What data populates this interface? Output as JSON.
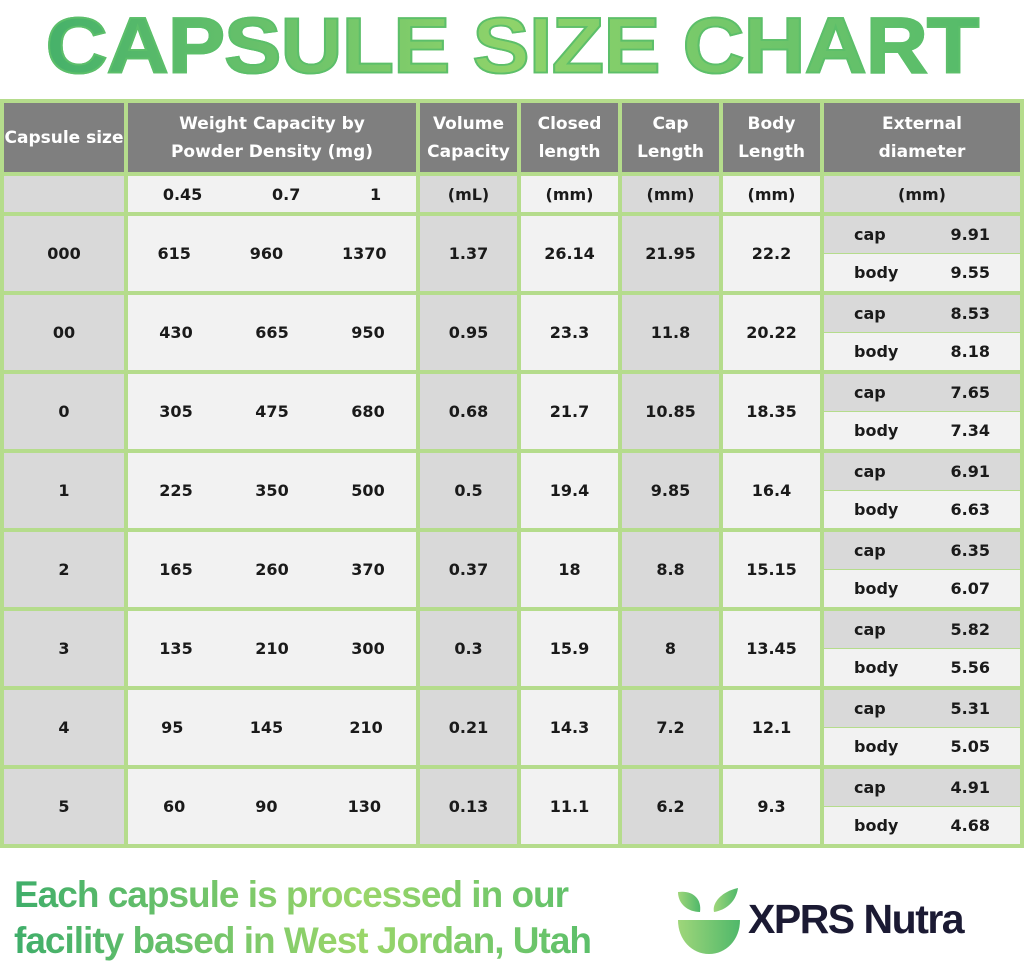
{
  "title": "CAPSULE SIZE CHART",
  "colors": {
    "border": "#b5dc8c",
    "header_bg": "#7f7f7f",
    "dark_cell": "#d9d9d9",
    "light_cell": "#f2f2f2",
    "title_green": "#5cbf6a",
    "brand_navy": "#1b1a33"
  },
  "chart_data": {
    "type": "table",
    "headers": {
      "capsule_size": "Capsule size",
      "weight_line1": "Weight Capacity by",
      "weight_line2": "Powder Density (mg)",
      "volume_line1": "Volume",
      "volume_line2": "Capacity",
      "closed_line1": "Closed",
      "closed_line2": "length",
      "cap_line1": "Cap",
      "cap_line2": "Length",
      "body_line1": "Body",
      "body_line2": "Length",
      "ext_line1": "External",
      "ext_line2": "diameter"
    },
    "units": {
      "densities": [
        "0.45",
        "0.7",
        "1"
      ],
      "volume": "(mL)",
      "closed": "(mm)",
      "cap": "(mm)",
      "body": "(mm)",
      "ext": "(mm)"
    },
    "cap_label": "cap",
    "body_label": "body",
    "rows": [
      {
        "size": "000",
        "w": [
          "615",
          "960",
          "1370"
        ],
        "vol": "1.37",
        "closed": "26.14",
        "cap": "21.95",
        "body": "22.2",
        "ext_cap": "9.91",
        "ext_body": "9.55"
      },
      {
        "size": "00",
        "w": [
          "430",
          "665",
          "950"
        ],
        "vol": "0.95",
        "closed": "23.3",
        "cap": "11.8",
        "body": "20.22",
        "ext_cap": "8.53",
        "ext_body": "8.18"
      },
      {
        "size": "0",
        "w": [
          "305",
          "475",
          "680"
        ],
        "vol": "0.68",
        "closed": "21.7",
        "cap": "10.85",
        "body": "18.35",
        "ext_cap": "7.65",
        "ext_body": "7.34"
      },
      {
        "size": "1",
        "w": [
          "225",
          "350",
          "500"
        ],
        "vol": "0.5",
        "closed": "19.4",
        "cap": "9.85",
        "body": "16.4",
        "ext_cap": "6.91",
        "ext_body": "6.63"
      },
      {
        "size": "2",
        "w": [
          "165",
          "260",
          "370"
        ],
        "vol": "0.37",
        "closed": "18",
        "cap": "8.8",
        "body": "15.15",
        "ext_cap": "6.35",
        "ext_body": "6.07"
      },
      {
        "size": "3",
        "w": [
          "135",
          "210",
          "300"
        ],
        "vol": "0.3",
        "closed": "15.9",
        "cap": "8",
        "body": "13.45",
        "ext_cap": "5.82",
        "ext_body": "5.56"
      },
      {
        "size": "4",
        "w": [
          "95",
          "145",
          "210"
        ],
        "vol": "0.21",
        "closed": "14.3",
        "cap": "7.2",
        "body": "12.1",
        "ext_cap": "5.31",
        "ext_body": "5.05"
      },
      {
        "size": "5",
        "w": [
          "60",
          "90",
          "130"
        ],
        "vol": "0.13",
        "closed": "11.1",
        "cap": "6.2",
        "body": "9.3",
        "ext_cap": "4.91",
        "ext_body": "4.68"
      }
    ]
  },
  "footer": {
    "line1": "Each capsule is processed in our",
    "line2": "facility based in West Jordan, Utah"
  },
  "brand": {
    "name": "XPRS Nutra",
    "logo_icon": "leaf-bowl-icon"
  }
}
